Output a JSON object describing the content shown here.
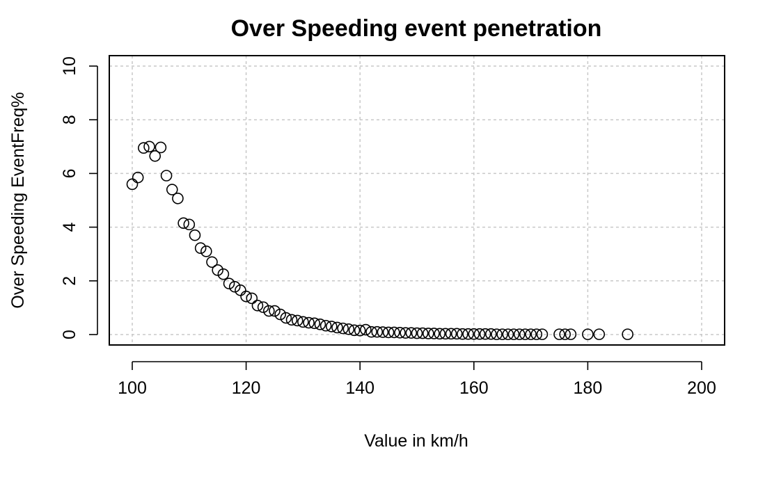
{
  "chart_data": {
    "type": "scatter",
    "title": "Over Speeding event penetration",
    "xlabel": "Value in km/h",
    "ylabel": "Over Speeding EventFreq%",
    "xlim": [
      100,
      200
    ],
    "ylim": [
      0,
      10
    ],
    "x_ticks": [
      "100",
      "120",
      "140",
      "160",
      "180",
      "200"
    ],
    "y_ticks": [
      "0",
      "2",
      "4",
      "6",
      "8",
      "10"
    ],
    "grid": true,
    "marker": "open-circle",
    "colors": {
      "points": "#000000",
      "grid": "#c8c8c8"
    },
    "points": [
      [
        100,
        5.6
      ],
      [
        101,
        5.85
      ],
      [
        102,
        6.95
      ],
      [
        103,
        7.0
      ],
      [
        104,
        6.65
      ],
      [
        105,
        6.97
      ],
      [
        106,
        5.92
      ],
      [
        107,
        5.4
      ],
      [
        108,
        5.07
      ],
      [
        109,
        4.15
      ],
      [
        110,
        4.1
      ],
      [
        111,
        3.7
      ],
      [
        112,
        3.22
      ],
      [
        113,
        3.1
      ],
      [
        114,
        2.7
      ],
      [
        115,
        2.4
      ],
      [
        116,
        2.25
      ],
      [
        117,
        1.9
      ],
      [
        118,
        1.78
      ],
      [
        119,
        1.65
      ],
      [
        120,
        1.42
      ],
      [
        121,
        1.35
      ],
      [
        122,
        1.08
      ],
      [
        123,
        1.02
      ],
      [
        124,
        0.88
      ],
      [
        125,
        0.88
      ],
      [
        126,
        0.75
      ],
      [
        127,
        0.62
      ],
      [
        128,
        0.55
      ],
      [
        129,
        0.52
      ],
      [
        130,
        0.47
      ],
      [
        131,
        0.44
      ],
      [
        132,
        0.42
      ],
      [
        133,
        0.38
      ],
      [
        134,
        0.33
      ],
      [
        135,
        0.3
      ],
      [
        136,
        0.26
      ],
      [
        137,
        0.23
      ],
      [
        138,
        0.2
      ],
      [
        139,
        0.16
      ],
      [
        140,
        0.15
      ],
      [
        141,
        0.18
      ],
      [
        142,
        0.1
      ],
      [
        143,
        0.1
      ],
      [
        144,
        0.09
      ],
      [
        145,
        0.08
      ],
      [
        146,
        0.08
      ],
      [
        147,
        0.07
      ],
      [
        148,
        0.06
      ],
      [
        149,
        0.06
      ],
      [
        150,
        0.05
      ],
      [
        151,
        0.05
      ],
      [
        152,
        0.04
      ],
      [
        153,
        0.04
      ],
      [
        154,
        0.03
      ],
      [
        155,
        0.03
      ],
      [
        156,
        0.03
      ],
      [
        157,
        0.03
      ],
      [
        158,
        0.02
      ],
      [
        159,
        0.02
      ],
      [
        160,
        0.02
      ],
      [
        161,
        0.02
      ],
      [
        162,
        0.02
      ],
      [
        163,
        0.02
      ],
      [
        164,
        0.01
      ],
      [
        165,
        0.01
      ],
      [
        166,
        0.01
      ],
      [
        167,
        0.01
      ],
      [
        168,
        0.01
      ],
      [
        169,
        0.01
      ],
      [
        170,
        0.01
      ],
      [
        171,
        0.01
      ],
      [
        172,
        0.01
      ],
      [
        175,
        0.01
      ],
      [
        176,
        0.01
      ],
      [
        177,
        0.01
      ],
      [
        180,
        0.01
      ],
      [
        182,
        0.01
      ],
      [
        187,
        0.01
      ]
    ]
  }
}
